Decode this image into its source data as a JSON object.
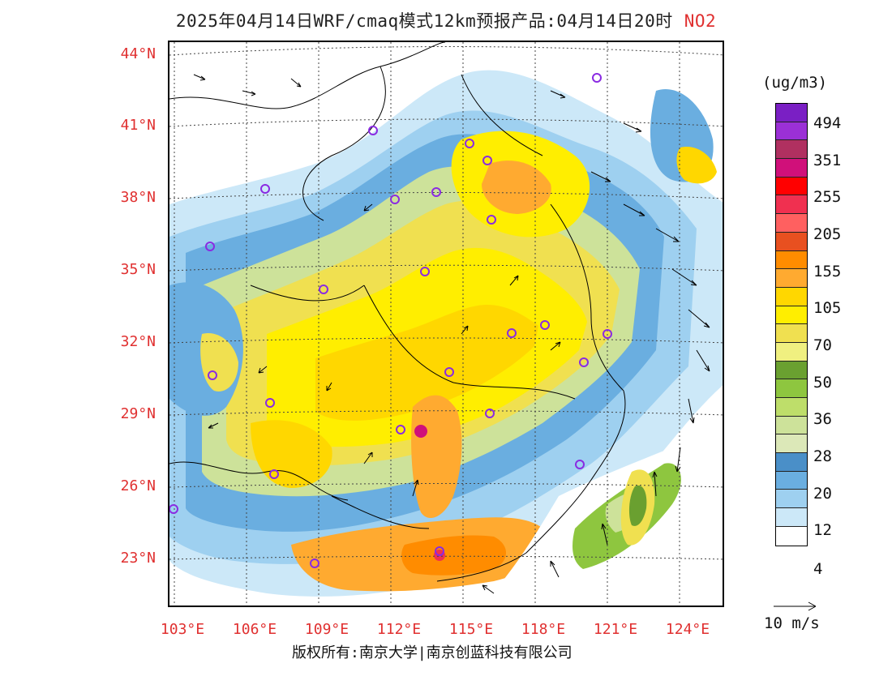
{
  "title": "2025年04月14日WRF/cmaq模式12km预报产品:04月14日20时",
  "pollutant": "NO2",
  "lat_labels": [
    "44°N",
    "41°N",
    "38°N",
    "35°N",
    "32°N",
    "29°N",
    "26°N",
    "23°N"
  ],
  "lon_labels": [
    "103°E",
    "106°E",
    "109°E",
    "112°E",
    "115°E",
    "118°E",
    "121°E",
    "124°E"
  ],
  "colorbar": {
    "unit": "(ug/m3)",
    "labels": [
      "494",
      "351",
      "255",
      "205",
      "155",
      "105",
      "70",
      "50",
      "36",
      "28",
      "20",
      "12",
      "4"
    ],
    "colors": [
      "#7a1fc4",
      "#9b30d6",
      "#b03060",
      "#d0107a",
      "#ff0000",
      "#f03050",
      "#ff6060",
      "#e85020",
      "#ff8c00",
      "#ffaa30",
      "#ffd700",
      "#ffee00",
      "#f0e050",
      "#f0f080",
      "#6aa030",
      "#8ec63f",
      "#bede6a",
      "#cde29a",
      "#dce8b8",
      "#4a8fc8",
      "#6aaee0",
      "#9ed0f0",
      "#cce8f8",
      "#ffffff"
    ]
  },
  "wind_label": "10 m/s",
  "footer": "版权所有:南京大学|南京创蓝科技有限公司"
}
